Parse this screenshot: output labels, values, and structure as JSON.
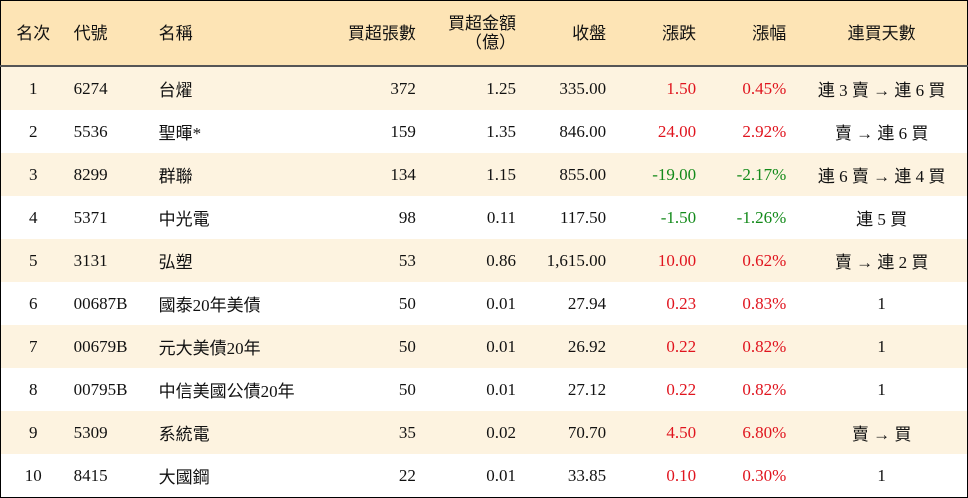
{
  "table": {
    "header": [
      "名次",
      "代號",
      "名稱",
      "買超張數",
      "買超金額\n（億）",
      "收盤",
      "漲跌",
      "漲幅",
      "連買天數"
    ],
    "rows": [
      [
        "1",
        "6274",
        "台燿",
        "372",
        "1.25",
        "335.00",
        "1.50",
        "0.45%",
        "連 3 賣 → 連 6 買"
      ],
      [
        "2",
        "5536",
        "聖暉*",
        "159",
        "1.35",
        "846.00",
        "24.00",
        "2.92%",
        "賣 → 連 6 買"
      ],
      [
        "3",
        "8299",
        "群聯",
        "134",
        "1.15",
        "855.00",
        "-19.00",
        "-2.17%",
        "連 6 賣 → 連 4 買"
      ],
      [
        "4",
        "5371",
        "中光電",
        "98",
        "0.11",
        "117.50",
        "-1.50",
        "-1.26%",
        "連 5 買"
      ],
      [
        "5",
        "3131",
        "弘塑",
        "53",
        "0.86",
        "1,615.00",
        "10.00",
        "0.62%",
        "賣 → 連 2 買"
      ],
      [
        "6",
        "00687B",
        "國泰20年美債",
        "50",
        "0.01",
        "27.94",
        "0.23",
        "0.83%",
        "1"
      ],
      [
        "7",
        "00679B",
        "元大美債20年",
        "50",
        "0.01",
        "26.92",
        "0.22",
        "0.82%",
        "1"
      ],
      [
        "8",
        "00795B",
        "中信美國公債20年",
        "50",
        "0.01",
        "27.12",
        "0.22",
        "0.82%",
        "1"
      ],
      [
        "9",
        "5309",
        "系統電",
        "35",
        "0.02",
        "70.70",
        "4.50",
        "6.80%",
        "賣 → 買"
      ],
      [
        "10",
        "8415",
        "大國鋼",
        "22",
        "0.01",
        "33.85",
        "0.10",
        "0.30%",
        "1"
      ]
    ]
  }
}
